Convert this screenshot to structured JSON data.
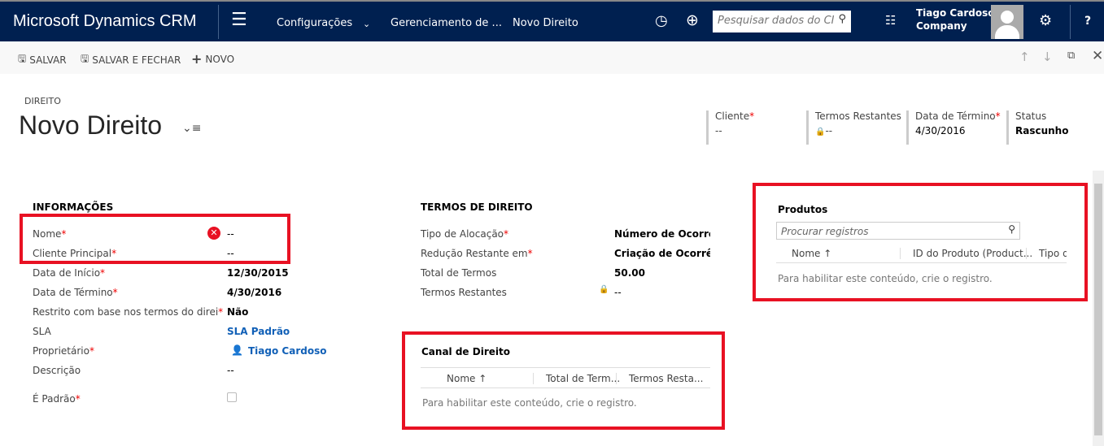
{
  "nav": {
    "brand": "Microsoft Dynamics CRM",
    "crumbs": [
      "Configurações",
      "Gerenciamento de ...",
      "Novo Direito"
    ],
    "search_placeholder": "Pesquisar dados do CI",
    "user_name": "Tiago Cardoso",
    "company": "Company",
    "help": "?"
  },
  "toolbar": {
    "save": "SALVAR",
    "save_close": "SALVAR E FECHAR",
    "new": "NOVO"
  },
  "header": {
    "entity": "DIREITO",
    "title": "Novo Direito",
    "fields": [
      {
        "label": "Cliente",
        "value": "--",
        "required": "*"
      },
      {
        "label": "Termos Restantes",
        "value": "--"
      },
      {
        "label": "Data de Término",
        "value": "4/30/2016",
        "required": "*"
      },
      {
        "label": "Status",
        "value": "Rascunho"
      }
    ]
  },
  "info": {
    "title": "INFORMAÇÕES",
    "fields": [
      {
        "label": "Nome",
        "req": "*",
        "value": "--"
      },
      {
        "label": "Cliente Principal",
        "req": "*",
        "value": "--"
      },
      {
        "label": "Data de Início",
        "req": "*",
        "value": "12/30/2015"
      },
      {
        "label": "Data de Término",
        "req": "*",
        "value": "4/30/2016"
      },
      {
        "label": "Restrito com base nos termos do direi",
        "req": "*",
        "value": "Não"
      },
      {
        "label": "SLA",
        "value": "SLA Padrão"
      },
      {
        "label": "Proprietário",
        "req": "*",
        "value": "Tiago Cardoso"
      },
      {
        "label": "Descrição",
        "value": "--"
      },
      {
        "label": "É Padrão",
        "req": "*",
        "value": ""
      }
    ]
  },
  "terms": {
    "title": "TERMOS DE DIREITO",
    "fields": [
      {
        "label": "Tipo de Alocação",
        "req": "*",
        "value": "Número de Ocorrências"
      },
      {
        "label": "Redução Restante em",
        "req": "*",
        "value": "Criação de Ocorrências"
      },
      {
        "label": "Total de Termos",
        "value": "50.00"
      },
      {
        "label": "Termos Restantes",
        "value": "--"
      }
    ]
  },
  "canal": {
    "title": "Canal de Direito",
    "columns": [
      "Nome ↑",
      "Total de Term...",
      "Termos Resta..."
    ],
    "empty": "Para habilitar este conteúdo, crie o registro."
  },
  "produtos": {
    "title": "Produtos",
    "search_placeholder": "Procurar registros",
    "columns": [
      "Nome ↑",
      "ID do Produto (Product...",
      "Tipo de P"
    ],
    "empty": "Para habilitar este conteúdo, crie o registro."
  },
  "colors": {
    "nav": "#002050",
    "highlight": "#e81123",
    "link": "#1160b7"
  }
}
